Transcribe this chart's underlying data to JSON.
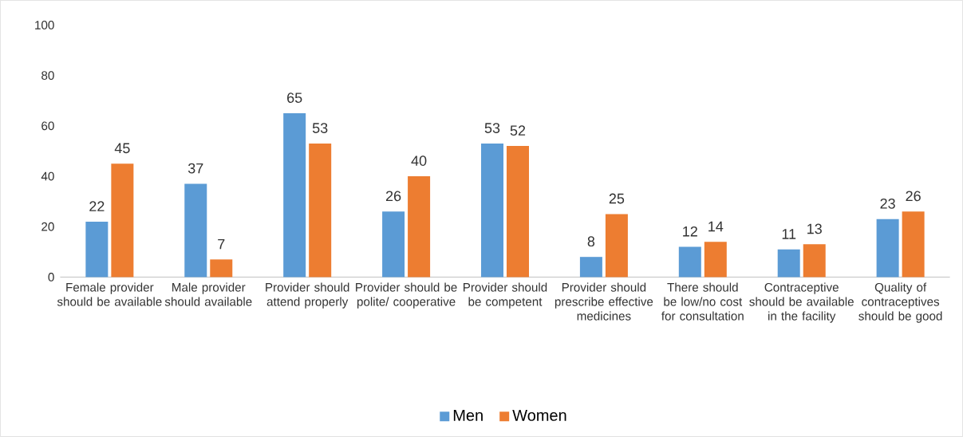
{
  "chart_data": {
    "type": "bar",
    "categories": [
      "Female provider should be available",
      "Male provider should available",
      "Provider should  attend properly",
      "Provider should be polite/ cooperative",
      "Provider should  be competent",
      "Provider should prescribe effective medicines",
      "There should be low/no cost for consultation",
      "Contraceptive should be available in the facility",
      "Quality of contraceptives should be good"
    ],
    "series": [
      {
        "name": "Men",
        "color": "#5b9bd5",
        "values": [
          22,
          37,
          65,
          26,
          53,
          8,
          12,
          11,
          23
        ]
      },
      {
        "name": "Women",
        "color": "#ed7d31",
        "values": [
          45,
          7,
          53,
          40,
          52,
          25,
          14,
          13,
          26
        ]
      }
    ],
    "ylim": [
      0,
      100
    ],
    "yticks": [
      0,
      20,
      40,
      60,
      80,
      100
    ],
    "data_labels": true,
    "legend": "bottom"
  }
}
